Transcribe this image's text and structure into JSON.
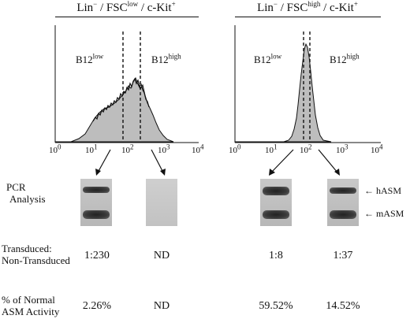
{
  "panels": [
    {
      "title": {
        "pre": "Lin",
        "sup1": "−",
        "mid": " / FSC",
        "sup2": "low",
        "post": " / c-Kit",
        "sup3": "+"
      },
      "gates": [
        {
          "base": "B12",
          "sup": "low"
        },
        {
          "base": "B12",
          "sup": "high"
        }
      ]
    },
    {
      "title": {
        "pre": "Lin",
        "sup1": "−",
        "mid": " / FSC",
        "sup2": "high",
        "post": " / c-Kit",
        "sup3": "+"
      },
      "gates": [
        {
          "base": "B12",
          "sup": "low"
        },
        {
          "base": "B12",
          "sup": "high"
        }
      ]
    }
  ],
  "axis_ticks": [
    {
      "base": "10",
      "exp": "0"
    },
    {
      "base": "10",
      "exp": "1"
    },
    {
      "base": "10",
      "exp": "2"
    },
    {
      "base": "10",
      "exp": "3"
    },
    {
      "base": "10",
      "exp": "4"
    }
  ],
  "pcr": {
    "label_line1": "PCR",
    "label_line2": "Analysis",
    "markers": [
      "← hASM",
      "← mASM"
    ]
  },
  "ratio": {
    "label_line1": "Transduced:",
    "label_line2": "Non-Transduced",
    "values": [
      "1:230",
      "ND",
      "1:8",
      "1:37"
    ]
  },
  "activity": {
    "label_line1": "% of Normal",
    "label_line2": "ASM Activity",
    "values": [
      "2.26%",
      "ND",
      "59.52%",
      "14.52%"
    ]
  },
  "colors": {
    "histogram_fill": "#bdbdbd",
    "ink": "#111111",
    "gel_bg": "#c4c4c4"
  }
}
